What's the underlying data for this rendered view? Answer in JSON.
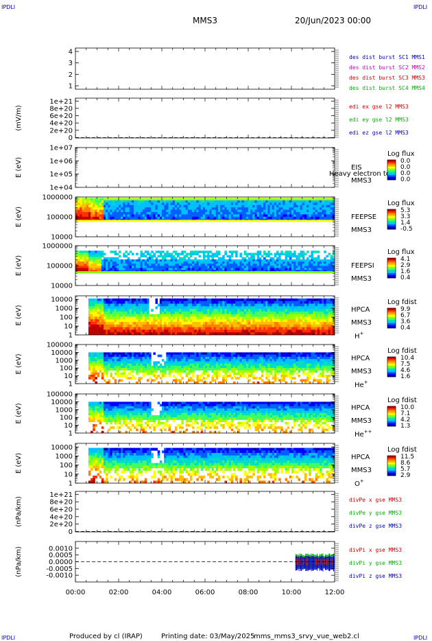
{
  "corner_tag": "IPDLI",
  "header": {
    "spacecraft": "MMS3",
    "date": "20/Jun/2023 00:00"
  },
  "footer": {
    "produced": "Produced by cl (IRAP)",
    "printing": "Printing date: 03/May/2025",
    "file": "mms_mms3_srvy_vue_web2.cl"
  },
  "colors": {
    "frame": "#000000",
    "red": "#d00000",
    "green": "#00b000",
    "blue": "#0000c0",
    "magenta": "#c000c0",
    "spectro": [
      "#0000a0",
      "#0000ff",
      "#0060ff",
      "#00c0ff",
      "#00e0c0",
      "#40ff60",
      "#a0ff00",
      "#ffff00",
      "#ffc000",
      "#ff8000",
      "#ff3000",
      "#c00000"
    ]
  },
  "chart_data": {
    "type": "multi-panel time series / spectrogram",
    "x_ticks": [
      "00:00",
      "02:00",
      "04:00",
      "06:00",
      "08:00",
      "10:00",
      "12:00"
    ],
    "xlim_hours": [
      0,
      12
    ],
    "panels": [
      {
        "kind": "line",
        "ylabel": "",
        "ticks": [
          "4",
          "3",
          "2",
          "1"
        ],
        "tick_values": [
          4,
          3,
          2,
          1
        ],
        "ylim": [
          0.7,
          4.3
        ],
        "legend": [
          [
            "des dist burst SC1 MMS1",
            "blue"
          ],
          [
            "des dist burst SC2 MMS2",
            "magenta"
          ],
          [
            "des dist burst SC3 MMS3",
            "red"
          ],
          [
            "des dist burst SC4 MMS4",
            "green"
          ]
        ]
      },
      {
        "kind": "line",
        "ylabel": "(mV/m)",
        "ticks": [
          "1e+21",
          "8e+20",
          "6e+20",
          "4e+20",
          "2e+20",
          "0"
        ],
        "tick_values": [
          1e+21,
          8e+20,
          6e+20,
          4e+20,
          2e+20,
          0
        ],
        "ylim": [
          -1e+19,
          1.08e+21
        ],
        "zero_line": true,
        "legend": [
          [
            "edi ex gse l2 MMS3",
            "red"
          ],
          [
            "edi ey gse l2 MMS3",
            "green"
          ],
          [
            "edi ez gse l2 MMS3",
            "blue"
          ]
        ]
      },
      {
        "kind": "spec",
        "ylabel": "E (eV)",
        "ticks": [
          "1e+07",
          "1e+06",
          "1e+05",
          "1e+04"
        ],
        "tick_log": [
          7,
          6,
          5,
          4
        ],
        "ylim_log": [
          4,
          7
        ],
        "instrument": [
          "EIS",
          "MMS3"
        ],
        "overlay": "Heavy electron to",
        "cbar": {
          "label": "Log flux",
          "ticks": [
            "0.0",
            "0.0",
            "0.0",
            "0.0"
          ]
        },
        "data": "none"
      },
      {
        "kind": "spec",
        "ylabel": "E (eV)",
        "ticks": [
          "1000000",
          "100000",
          "10000"
        ],
        "tick_log": [
          6,
          5,
          4
        ],
        "ylim_log": [
          4,
          6
        ],
        "instrument": [
          "FEEPSE",
          "MMS3"
        ],
        "cbar": {
          "label": "Log flux",
          "ticks": [
            "5.3",
            "3.3",
            "1.4",
            "-0.5"
          ]
        },
        "data": "feepse"
      },
      {
        "kind": "spec",
        "ylabel": "E (eV)",
        "ticks": [
          "1000000",
          "100000",
          "10000"
        ],
        "tick_log": [
          6,
          5,
          4
        ],
        "ylim_log": [
          4,
          6
        ],
        "instrument": [
          "FEEPSI",
          "MMS3"
        ],
        "cbar": {
          "label": "Log flux",
          "ticks": [
            "4.1",
            "2.9",
            "1.6",
            "0.4"
          ]
        },
        "data": "feepsi"
      },
      {
        "kind": "spec",
        "ylabel": "E (eV)",
        "ticks": [
          "10000",
          "1000",
          "100",
          "10",
          "1"
        ],
        "tick_log": [
          4,
          3,
          2,
          1,
          0
        ],
        "ylim_log": [
          0,
          4.4
        ],
        "instrument": [
          "HPCA",
          "MMS3"
        ],
        "species": "H",
        "charge": "+",
        "cbar": {
          "label": "Log fdist",
          "ticks": [
            "9.9",
            "6.7",
            "3.6",
            "0.4"
          ]
        },
        "data": "hpca_h"
      },
      {
        "kind": "spec",
        "ylabel": "E (eV)",
        "ticks": [
          "100000",
          "10000",
          "1000",
          "100",
          "10",
          "1"
        ],
        "tick_log": [
          5,
          4,
          3,
          2,
          1,
          0
        ],
        "ylim_log": [
          0,
          5
        ],
        "instrument": [
          "HPCA",
          "MMS3"
        ],
        "species": "He",
        "charge": "+",
        "cbar": {
          "label": "Log fdist",
          "ticks": [
            "10.4",
            "7.5",
            "4.6",
            "1.6"
          ]
        },
        "data": "hpca_he"
      },
      {
        "kind": "spec",
        "ylabel": "E (eV)",
        "ticks": [
          "100000",
          "10000",
          "1000",
          "100",
          "10",
          "1"
        ],
        "tick_log": [
          5,
          4,
          3,
          2,
          1,
          0
        ],
        "ylim_log": [
          0,
          5
        ],
        "instrument": [
          "HPCA",
          "MMS3"
        ],
        "species": "He",
        "charge": "++",
        "cbar": {
          "label": "Log fdist",
          "ticks": [
            "10.0",
            "7.1",
            "4.2",
            "1.3"
          ]
        },
        "data": "hpca_hepp"
      },
      {
        "kind": "spec",
        "ylabel": "E (eV)",
        "ticks": [
          "10000",
          "1000",
          "100",
          "10",
          "1"
        ],
        "tick_log": [
          4,
          3,
          2,
          1,
          0
        ],
        "ylim_log": [
          0,
          4.4
        ],
        "instrument": [
          "HPCA",
          "MMS3"
        ],
        "species": "O",
        "charge": "+",
        "cbar": {
          "label": "Log fdist",
          "ticks": [
            "11.5",
            "8.6",
            "5.7",
            "2.9"
          ]
        },
        "data": "hpca_o"
      },
      {
        "kind": "line",
        "ylabel": "(nPa/km)",
        "ticks": [
          "1e+21",
          "8e+20",
          "6e+20",
          "4e+20",
          "2e+20",
          "0"
        ],
        "tick_values": [
          1e+21,
          8e+20,
          6e+20,
          4e+20,
          2e+20,
          0
        ],
        "ylim": [
          -1e+19,
          1.08e+21
        ],
        "zero_line": true,
        "legend": [
          [
            "divPe x gse MMS3",
            "red"
          ],
          [
            "divPe y gse MMS3",
            "green"
          ],
          [
            "divPe z gse MMS3",
            "blue"
          ]
        ]
      },
      {
        "kind": "line",
        "ylabel": "(nPa/km)",
        "ticks": [
          "0.0010",
          "0.0005",
          "0.0000",
          "-0.0005",
          "-0.0010"
        ],
        "tick_values": [
          0.001,
          0.0005,
          0.0,
          -0.0005,
          -0.001
        ],
        "ylim": [
          -0.0015,
          0.0015
        ],
        "zero_line": true,
        "legend": [
          [
            "divPi x gse MMS3",
            "red"
          ],
          [
            "divPi y gse MMS3",
            "green"
          ],
          [
            "divPi z gse MMS3",
            "blue"
          ]
        ],
        "data": "divpi",
        "series_note_hours": [
          10.2,
          12
        ]
      }
    ]
  }
}
